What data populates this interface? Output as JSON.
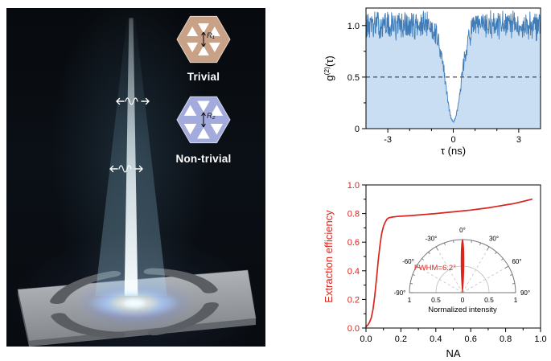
{
  "figure": {
    "illustration": {
      "insets": [
        {
          "label": "Trivial",
          "radius_label": "R₁"
        },
        {
          "label": "Non-trivial",
          "radius_label": "R₂"
        }
      ]
    }
  },
  "chart_data": [
    {
      "id": "g2-correlation",
      "type": "area",
      "xlabel": "τ (ns)",
      "ylabel_parts": [
        "g",
        "(2)",
        "(τ)"
      ],
      "xlim": [
        -4,
        4
      ],
      "ylim": [
        0,
        1.17
      ],
      "xticks": [
        {
          "v": -3,
          "label": "-3"
        },
        {
          "v": 0,
          "label": "0"
        },
        {
          "v": 3,
          "label": "3"
        }
      ],
      "xticks_minor": [
        -2,
        -1,
        1,
        2
      ],
      "yticks": [
        {
          "v": 0,
          "label": "0"
        },
        {
          "v": 0.5,
          "label": "0.5"
        },
        {
          "v": 1,
          "label": "1.0"
        }
      ],
      "yticks_minor": [
        0.25,
        0.75
      ],
      "threshold_y": 0.5,
      "line_color": "#3f7cb8",
      "fill_color": "#c9def2",
      "trace_model": {
        "baseline": 1.0,
        "noise_amplitude": 0.11,
        "noise_amplitude2": 0.05,
        "dip_center_ns": 0,
        "dip_depth": 0.93,
        "dip_sigma_ns": 0.5,
        "n_points": 560,
        "seed": 13
      }
    },
    {
      "id": "extraction-efficiency",
      "type": "line",
      "xlabel": "NA",
      "ylabel": "Extraction efficiency",
      "xlim": [
        0,
        1
      ],
      "ylim": [
        0,
        1
      ],
      "xticks": [
        {
          "v": 0,
          "label": "0.0"
        },
        {
          "v": 0.2,
          "label": "0.2"
        },
        {
          "v": 0.4,
          "label": "0.4"
        },
        {
          "v": 0.6,
          "label": "0.6"
        },
        {
          "v": 0.8,
          "label": "0.8"
        },
        {
          "v": 1,
          "label": "1.0"
        }
      ],
      "xticks_minor": [
        0.1,
        0.3,
        0.5,
        0.7,
        0.9
      ],
      "yticks": [
        {
          "v": 0,
          "label": "0.0"
        },
        {
          "v": 0.2,
          "label": "0.2"
        },
        {
          "v": 0.4,
          "label": "0.4"
        },
        {
          "v": 0.6,
          "label": "0.6"
        },
        {
          "v": 0.8,
          "label": "0.8"
        },
        {
          "v": 1,
          "label": "1.0"
        }
      ],
      "yticks_minor": [
        0.1,
        0.3,
        0.5,
        0.7,
        0.9
      ],
      "color": "#d9251d",
      "series": {
        "x": [
          0,
          0.01,
          0.02,
          0.03,
          0.04,
          0.05,
          0.06,
          0.07,
          0.08,
          0.09,
          0.1,
          0.11,
          0.12,
          0.13,
          0.15,
          0.18,
          0.22,
          0.26,
          0.3,
          0.35,
          0.4,
          0.45,
          0.5,
          0.55,
          0.6,
          0.65,
          0.7,
          0.75,
          0.8,
          0.85,
          0.9,
          0.95
        ],
        "y": [
          0.01,
          0.02,
          0.04,
          0.07,
          0.13,
          0.22,
          0.34,
          0.47,
          0.58,
          0.66,
          0.71,
          0.74,
          0.76,
          0.77,
          0.775,
          0.78,
          0.783,
          0.786,
          0.79,
          0.795,
          0.8,
          0.806,
          0.812,
          0.818,
          0.824,
          0.832,
          0.84,
          0.85,
          0.86,
          0.87,
          0.885,
          0.9
        ]
      },
      "inset": {
        "type": "polar-half",
        "annotation": "FWHM=6.2°",
        "fwhm_deg": 6.2,
        "color": "#d9251d",
        "angle_ticks": [
          {
            "deg": -90,
            "label": "-90°"
          },
          {
            "deg": -60,
            "label": "-60°"
          },
          {
            "deg": -30,
            "label": "-30°"
          },
          {
            "deg": 0,
            "label": "0°"
          },
          {
            "deg": 30,
            "label": "30°"
          },
          {
            "deg": 60,
            "label": "60°"
          },
          {
            "deg": 90,
            "label": "90°"
          }
        ],
        "radius_labels": [
          "1",
          "0.5",
          "0",
          "0.5",
          "1"
        ],
        "xlabel": "Normalized intensity"
      }
    }
  ]
}
